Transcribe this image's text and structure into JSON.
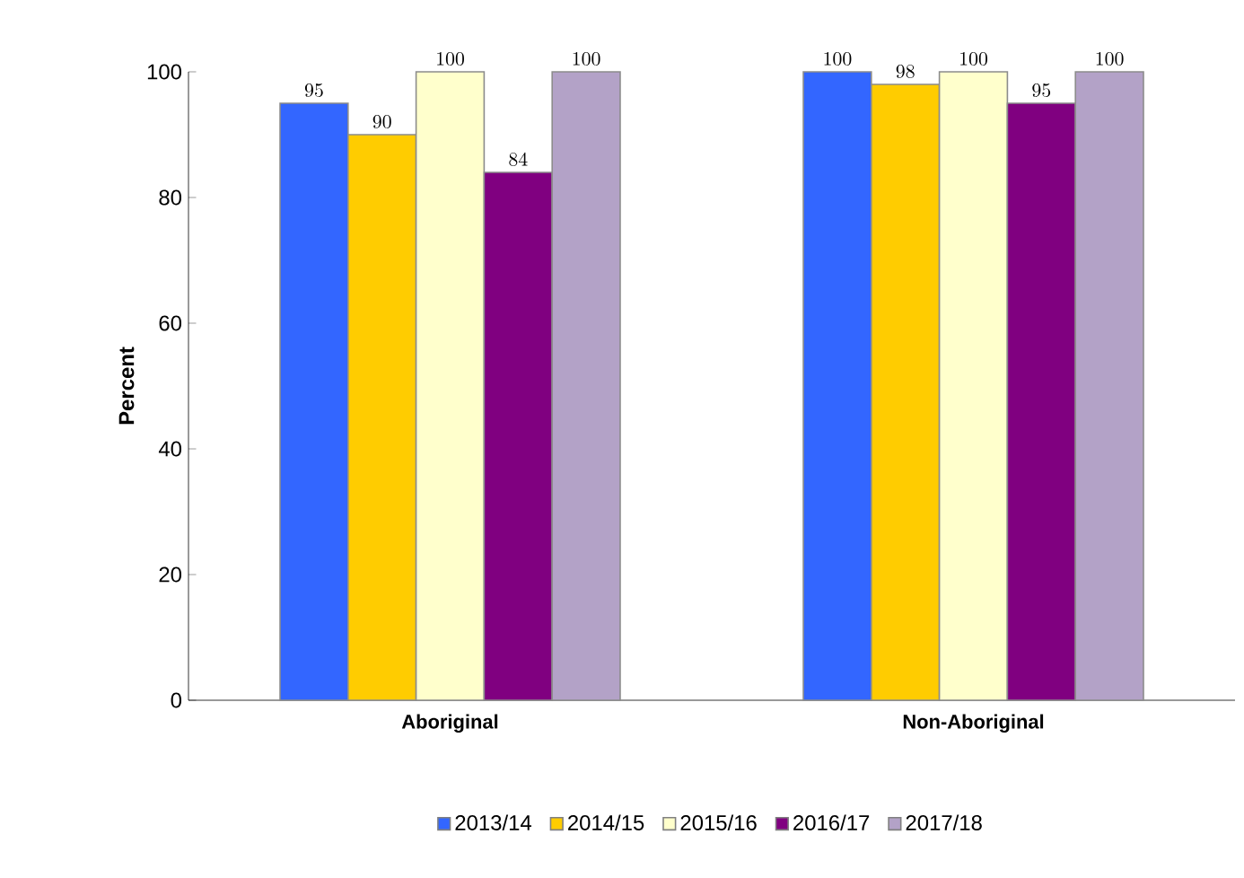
{
  "chart_data": {
    "type": "bar",
    "ylabel": "Percent",
    "categories": [
      "Aboriginal",
      "Non-Aboriginal"
    ],
    "series": [
      {
        "name": "2013/14",
        "color": "#3366ff",
        "values": [
          95,
          100
        ]
      },
      {
        "name": "2014/15",
        "color": "#ffcc00",
        "values": [
          90,
          98
        ]
      },
      {
        "name": "2015/16",
        "color": "#ffffcc",
        "values": [
          100,
          100
        ]
      },
      {
        "name": "2016/17",
        "color": "#800080",
        "values": [
          84,
          95
        ]
      },
      {
        "name": "2017/18",
        "color": "#b3a2c7",
        "values": [
          100,
          100
        ]
      }
    ],
    "ylim": [
      0,
      100
    ],
    "yticks": [
      0,
      20,
      40,
      60,
      80,
      100
    ],
    "data_labels": true,
    "legend": "bottom",
    "grid": false
  }
}
